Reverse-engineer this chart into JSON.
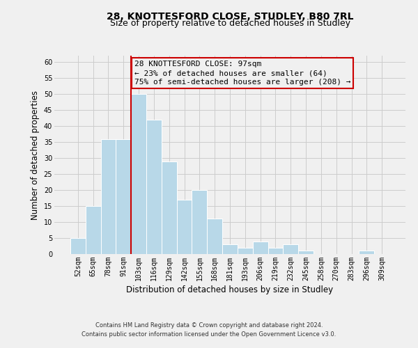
{
  "title1": "28, KNOTTESFORD CLOSE, STUDLEY, B80 7RL",
  "title2": "Size of property relative to detached houses in Studley",
  "xlabel": "Distribution of detached houses by size in Studley",
  "ylabel": "Number of detached properties",
  "bar_labels": [
    "52sqm",
    "65sqm",
    "78sqm",
    "91sqm",
    "103sqm",
    "116sqm",
    "129sqm",
    "142sqm",
    "155sqm",
    "168sqm",
    "181sqm",
    "193sqm",
    "206sqm",
    "219sqm",
    "232sqm",
    "245sqm",
    "258sqm",
    "270sqm",
    "283sqm",
    "296sqm",
    "309sqm"
  ],
  "bar_values": [
    5,
    15,
    36,
    36,
    50,
    42,
    29,
    17,
    20,
    11,
    3,
    2,
    4,
    2,
    3,
    1,
    0,
    0,
    0,
    1,
    0
  ],
  "bar_color": "#b8d8e8",
  "bar_edge_color": "#ffffff",
  "grid_color": "#cccccc",
  "background_color": "#f0f0f0",
  "annotation_line1": "28 KNOTTESFORD CLOSE: 97sqm",
  "annotation_line2": "← 23% of detached houses are smaller (64)",
  "annotation_line3": "75% of semi-detached houses are larger (208) →",
  "annotation_box_edge": "#cc0000",
  "vline_color": "#cc0000",
  "ylim": [
    0,
    62
  ],
  "yticks": [
    0,
    5,
    10,
    15,
    20,
    25,
    30,
    35,
    40,
    45,
    50,
    55,
    60
  ],
  "footer1": "Contains HM Land Registry data © Crown copyright and database right 2024.",
  "footer2": "Contains public sector information licensed under the Open Government Licence v3.0.",
  "title1_fontsize": 10,
  "title2_fontsize": 9,
  "xlabel_fontsize": 8.5,
  "ylabel_fontsize": 8.5,
  "tick_fontsize": 7,
  "annotation_fontsize": 8,
  "footer_fontsize": 6
}
